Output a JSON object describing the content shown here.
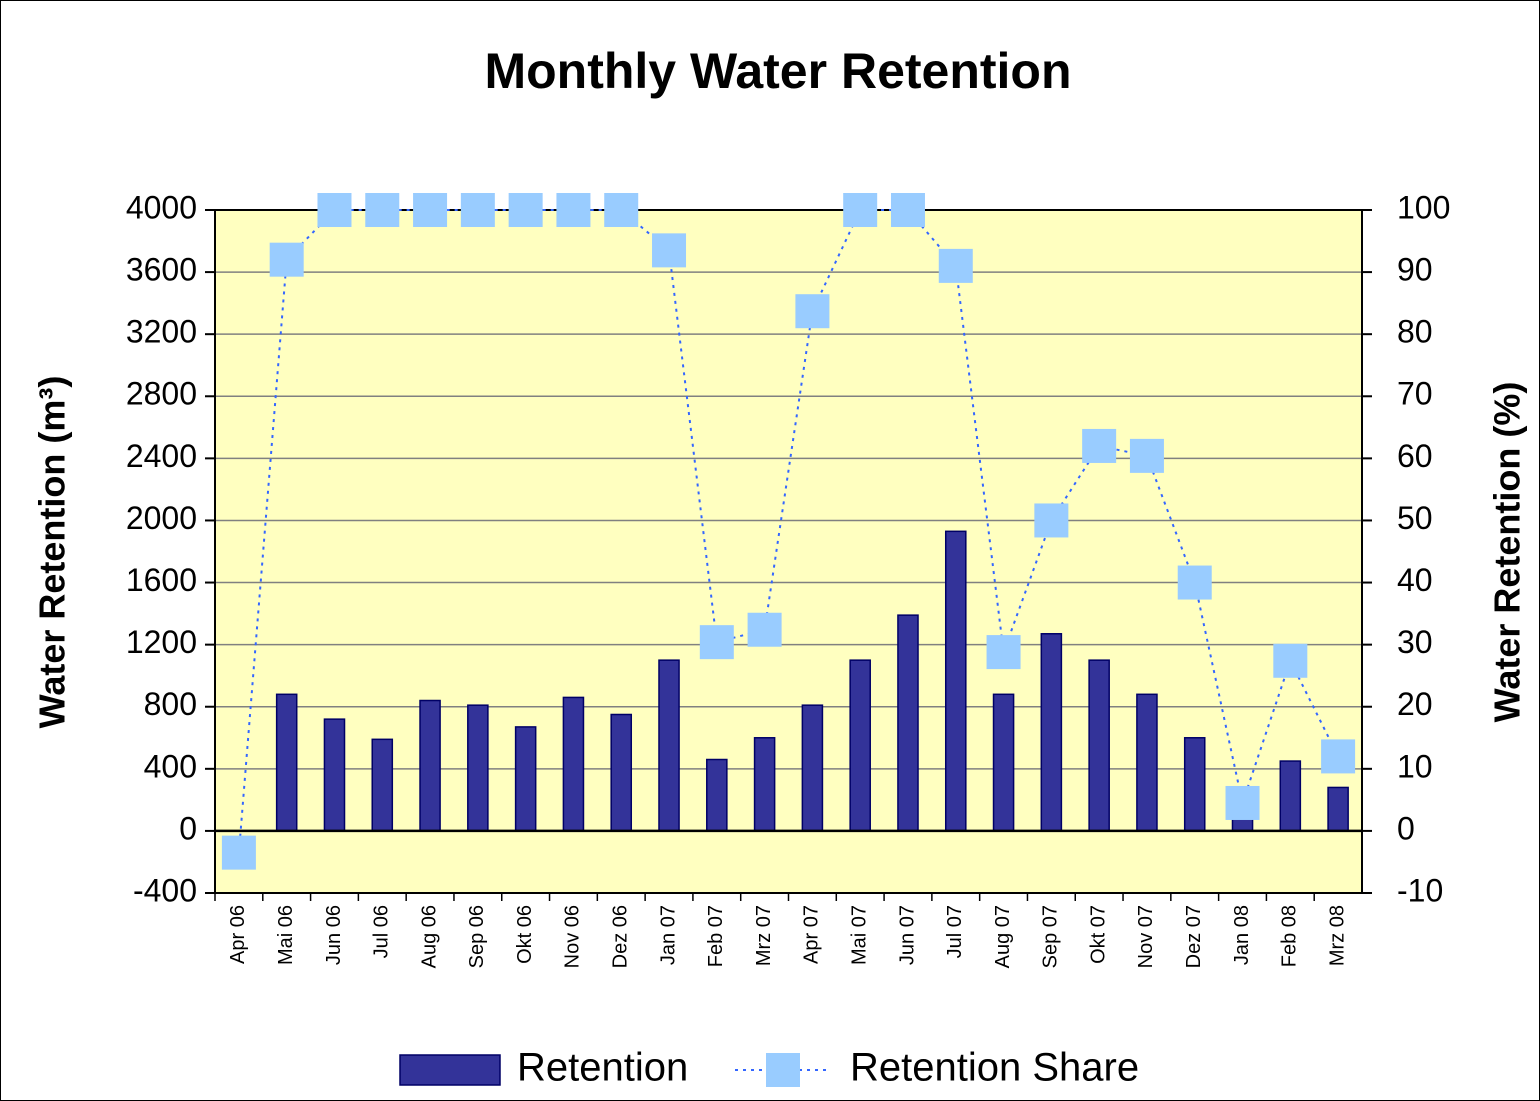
{
  "chart_data": {
    "type": "bar",
    "title": "Monthly Water Retention",
    "y_label": "Water Retention (m³)",
    "y2_label": "Water Retention (%)",
    "categories": [
      "Apr 06",
      "Mai 06",
      "Jun 06",
      "Jul 06",
      "Aug 06",
      "Sep 06",
      "Okt 06",
      "Nov 06",
      "Dez 06",
      "Jan 07",
      "Feb 07",
      "Mrz 07",
      "Apr 07",
      "Mai 07",
      "Jun 07",
      "Jul 07",
      "Aug 07",
      "Sep 07",
      "Okt 07",
      "Nov 07",
      "Dez 07",
      "Jan 08",
      "Feb 08",
      "Mrz 08"
    ],
    "series": [
      {
        "name": "Retention",
        "type": "bar",
        "color": "#333399",
        "values": [
          0,
          880,
          720,
          590,
          840,
          810,
          670,
          860,
          750,
          1100,
          460,
          600,
          810,
          1100,
          1390,
          1930,
          880,
          1270,
          1100,
          880,
          600,
          100,
          450,
          280
        ]
      },
      {
        "name": "Retention Share",
        "type": "line",
        "axis": "y2",
        "color": "#99ccff",
        "line_color": "#3366ff",
        "values": [
          -3.5,
          92,
          100,
          100,
          100,
          100,
          100,
          100,
          100,
          93.5,
          30.4,
          32.4,
          83.7,
          100,
          100,
          91,
          28.8,
          50,
          62,
          60.4,
          40,
          4.5,
          27.4,
          12
        ]
      }
    ],
    "ylim": [
      -400,
      4000
    ],
    "yticks": [
      -400,
      0,
      400,
      800,
      1200,
      1600,
      2000,
      2400,
      2800,
      3200,
      3600,
      4000
    ],
    "y2lim": [
      -10,
      100
    ],
    "y2ticks": [
      -10,
      0,
      10,
      20,
      30,
      40,
      50,
      60,
      70,
      80,
      90,
      100
    ],
    "grid": true,
    "legend": "bottom"
  }
}
